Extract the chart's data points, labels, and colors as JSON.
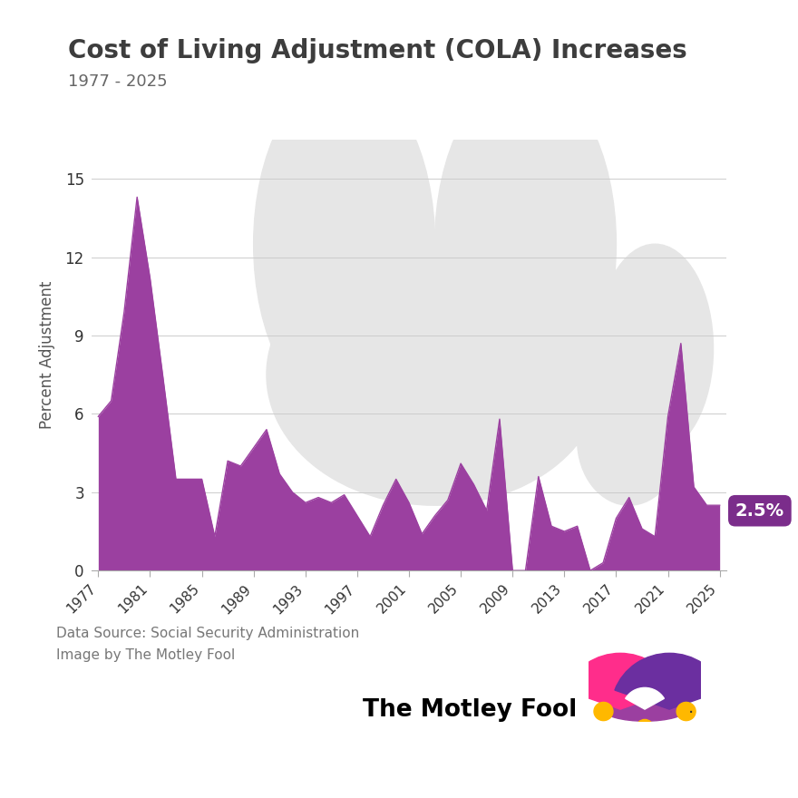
{
  "title": "Cost of Living Adjustment (COLA) Increases",
  "subtitle": "1977 - 2025",
  "ylabel": "Percent Adjustment",
  "source_line1": "Data Source: Social Security Administration",
  "source_line2": "Image by The Motley Fool",
  "title_color": "#3d3d3d",
  "subtitle_color": "#666666",
  "area_color": "#9B40A0",
  "background_color": "#ffffff",
  "accent_bar_color": "#7B2D8B",
  "label_bg_color": "#7B2D8B",
  "label_text_color": "#ffffff",
  "annotation_label": "2.5%",
  "watermark_color": "#e6e6e6",
  "grid_color": "#cccccc",
  "years": [
    1977,
    1978,
    1979,
    1980,
    1981,
    1982,
    1983,
    1984,
    1985,
    1986,
    1987,
    1988,
    1989,
    1990,
    1991,
    1992,
    1993,
    1994,
    1995,
    1996,
    1997,
    1998,
    1999,
    2000,
    2001,
    2002,
    2003,
    2004,
    2005,
    2006,
    2007,
    2008,
    2009,
    2010,
    2011,
    2012,
    2013,
    2014,
    2015,
    2016,
    2017,
    2018,
    2019,
    2020,
    2021,
    2022,
    2023,
    2024,
    2025
  ],
  "values": [
    5.9,
    6.5,
    9.9,
    14.3,
    11.2,
    7.4,
    3.5,
    3.5,
    3.5,
    1.3,
    4.2,
    4.0,
    4.7,
    5.4,
    3.7,
    3.0,
    2.6,
    2.8,
    2.6,
    2.9,
    2.1,
    1.3,
    2.5,
    3.5,
    2.6,
    1.4,
    2.1,
    2.7,
    4.1,
    3.3,
    2.3,
    5.8,
    0.0,
    0.0,
    3.6,
    1.7,
    1.5,
    1.7,
    0.0,
    0.3,
    2.0,
    2.8,
    1.6,
    1.3,
    5.9,
    8.7,
    3.2,
    2.5,
    2.5
  ],
  "yticks": [
    0,
    3,
    6,
    9,
    12,
    15
  ],
  "xtick_years": [
    1977,
    1981,
    1985,
    1989,
    1993,
    1997,
    2001,
    2005,
    2009,
    2013,
    2017,
    2021,
    2025
  ],
  "ylim": [
    0,
    16.5
  ],
  "xlim_left": 1976.5,
  "xlim_right": 2025.5
}
